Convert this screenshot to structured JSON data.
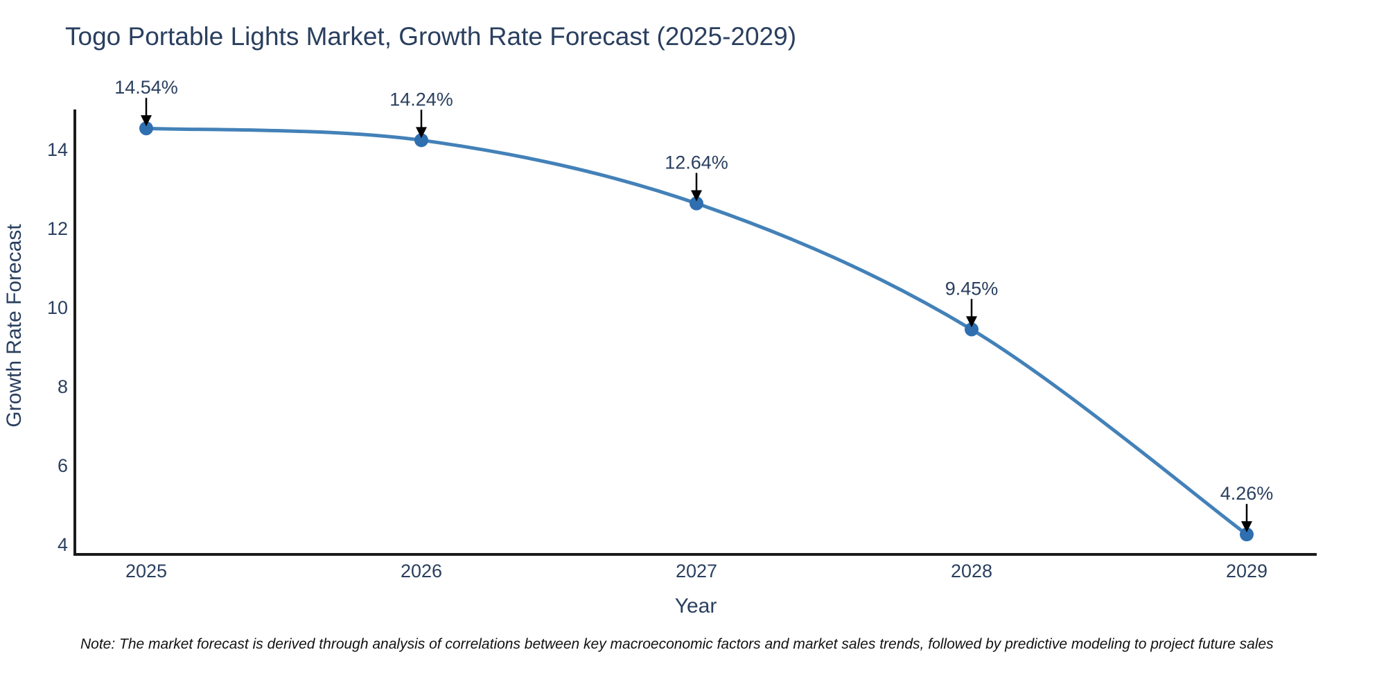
{
  "figure": {
    "note": "Note: The market forecast is derived through analysis of correlations between key macroeconomic factors and market sales trends, followed by predictive modeling to project future sales"
  },
  "chart_data": {
    "type": "line",
    "title": "Togo Portable Lights Market, Growth Rate Forecast (2025-2029)",
    "xlabel": "Year",
    "ylabel": "Growth Rate Forecast",
    "x": [
      2025,
      2026,
      2027,
      2028,
      2029
    ],
    "values": [
      14.54,
      14.24,
      12.64,
      9.45,
      4.26
    ],
    "point_labels": [
      "14.54%",
      "14.24%",
      "12.64%",
      "9.45%",
      "4.26%"
    ],
    "x_ticks": [
      "2025",
      "2026",
      "2027",
      "2028",
      "2029"
    ],
    "y_ticks": [
      4,
      6,
      8,
      10,
      12,
      14
    ],
    "ylim": [
      3.75,
      15.1
    ],
    "line_shape": "spline",
    "grid": false,
    "legend": "none",
    "colors": {
      "line": "#4381b8",
      "marker": "#2f6fb0",
      "text": "#2a3f5f",
      "axis": "#1a1a1a",
      "arrow": "#000000"
    }
  }
}
